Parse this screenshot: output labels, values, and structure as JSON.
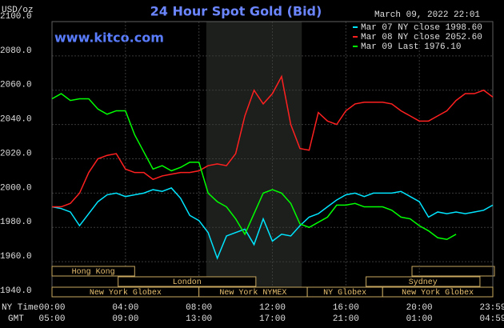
{
  "chart_data": {
    "type": "line",
    "title": "24 Hour Spot Gold (Bid)",
    "unit_label": "USD/oz",
    "timestamp": "March 09, 2022 22:01",
    "website": "www.kitco.com",
    "x_row_labels": [
      "NY Time",
      "GMT"
    ],
    "x": [
      0,
      0.5,
      1,
      1.5,
      2,
      2.5,
      3,
      3.5,
      4,
      4.5,
      5,
      5.5,
      6,
      6.5,
      7,
      7.5,
      8,
      8.5,
      9,
      9.5,
      10,
      10.5,
      11,
      11.5,
      12,
      12.5,
      13,
      13.5,
      14,
      14.5,
      15,
      15.5,
      16,
      16.5,
      17,
      17.5,
      18,
      18.5,
      19,
      19.5,
      20,
      20.5,
      21,
      21.5,
      22,
      22.5,
      23,
      23.5,
      24
    ],
    "series": [
      {
        "name": "Mar 07 NY close 1998.60",
        "color": "#00e5ff",
        "values": [
          1992,
          1991,
          1989,
          1981,
          1988,
          1995,
          1999,
          2000,
          1998,
          1999,
          2000,
          2002,
          2001,
          2003,
          1997,
          1987,
          1984,
          1977,
          1962,
          1975,
          1977,
          1979,
          1970,
          1985,
          1972,
          1976,
          1975,
          1981,
          1986,
          1988,
          1992,
          1996,
          1999,
          2000,
          1998,
          2000,
          2000,
          2000,
          2001,
          1998,
          1995,
          1986,
          1989,
          1988,
          1989,
          1988,
          1989,
          1990,
          1993
        ]
      },
      {
        "name": "Mar 08 NY close 2052.60",
        "color": "#ff2020",
        "values": [
          1992,
          1992,
          1994,
          2000,
          2012,
          2020,
          2022,
          2023,
          2014,
          2012,
          2012,
          2008,
          2010,
          2011,
          2012,
          2012,
          2013,
          2016,
          2017,
          2016,
          2023,
          2045,
          2060,
          2052,
          2058,
          2068,
          2040,
          2026,
          2025,
          2047,
          2042,
          2040,
          2048,
          2052,
          2053,
          2053,
          2053,
          2052,
          2048,
          2045,
          2042,
          2042,
          2045,
          2048,
          2054,
          2058,
          2058,
          2060,
          2056
        ]
      },
      {
        "name": "Mar 09 Last 1976.10",
        "color": "#00ff00",
        "values": [
          2055,
          2058,
          2054,
          2055,
          2055,
          2049,
          2046,
          2048,
          2048,
          2034,
          2024,
          2014,
          2016,
          2013,
          2015,
          2018,
          2018,
          2000,
          1995,
          1992,
          1985,
          1976,
          1988,
          2000,
          2002,
          2000,
          1994,
          1982,
          1980,
          1983,
          1986,
          1993,
          1993,
          1994,
          1992,
          1992,
          1992,
          1990,
          1986,
          1985,
          1981,
          1978,
          1974,
          1973,
          1976,
          null,
          null,
          null,
          null
        ]
      }
    ],
    "xlim": [
      0,
      24
    ],
    "xticks": [
      {
        "value": 0,
        "label": "00:00"
      },
      {
        "value": 4,
        "label": "04:00"
      },
      {
        "value": 8,
        "label": "08:00"
      },
      {
        "value": 12,
        "label": "12:00"
      },
      {
        "value": 16,
        "label": "16:00"
      },
      {
        "value": 20,
        "label": "20:00"
      },
      {
        "value": 24,
        "label": "23:59"
      }
    ],
    "gmt_ticks": [
      {
        "value": 0,
        "label": "05:00"
      },
      {
        "value": 4,
        "label": "09:00"
      },
      {
        "value": 8,
        "label": "13:00"
      },
      {
        "value": 12,
        "label": "17:00"
      },
      {
        "value": 16,
        "label": "21:00"
      },
      {
        "value": 20,
        "label": "01:00"
      },
      {
        "value": 24,
        "label": "04:59"
      }
    ],
    "ylim": [
      1940,
      2100
    ],
    "yticks": [
      {
        "value": 1940,
        "label": "1940.0"
      },
      {
        "value": 1960,
        "label": "1960.0"
      },
      {
        "value": 1980,
        "label": "1980.0"
      },
      {
        "value": 2000,
        "label": "2000.0"
      },
      {
        "value": 2020,
        "label": "2020.0"
      },
      {
        "value": 2040,
        "label": "2040.0"
      },
      {
        "value": 2060,
        "label": "2060.0"
      },
      {
        "value": 2080,
        "label": "2080.0"
      },
      {
        "value": 2100,
        "label": "2100.0"
      }
    ],
    "grid": true,
    "highlight_range": [
      8.4,
      13.6
    ],
    "sessions": [
      {
        "label": "Hong Kong",
        "start": 0,
        "end": 4.5
      },
      {
        "label": "London",
        "start": 3.6,
        "end": 11.1
      },
      {
        "label": "New York Globex",
        "start": 0,
        "end": 8
      },
      {
        "label": "New York NYMEX",
        "start": 8,
        "end": 13.9
      },
      {
        "label": "NY Globex",
        "start": 13.9,
        "end": 18
      },
      {
        "label": "Sydney",
        "start": 17.1,
        "end": 23.3
      },
      {
        "label": "New York Globex",
        "start": 18,
        "end": 24
      }
    ]
  }
}
